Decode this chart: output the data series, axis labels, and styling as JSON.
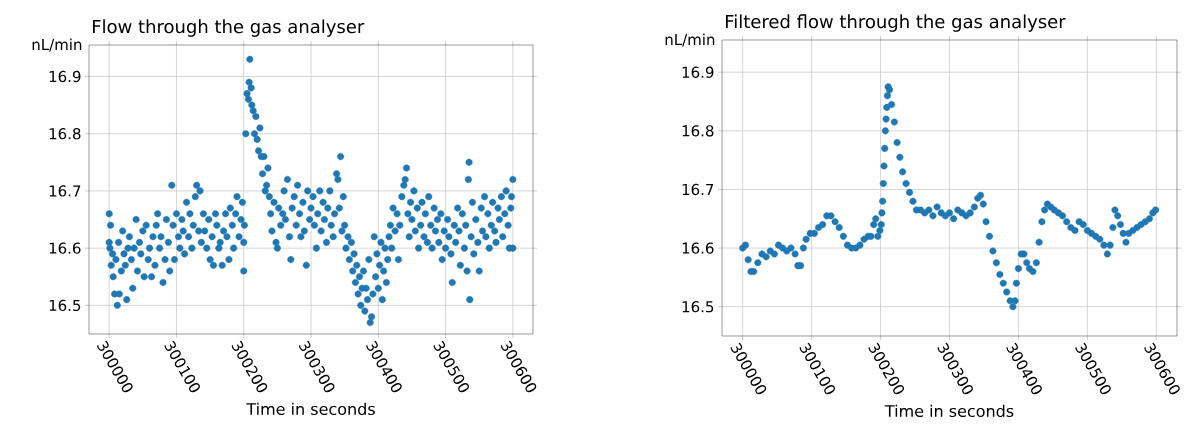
{
  "chart_data": [
    {
      "type": "scatter",
      "title": "Flow through the gas analyser",
      "xlabel": "Time in seconds",
      "ylabel": "nL/min",
      "xlim": [
        299970,
        300630
      ],
      "ylim": [
        16.45,
        16.955
      ],
      "xticks": [
        300000,
        300100,
        300200,
        300300,
        300400,
        300500,
        300600
      ],
      "yticks": [
        16.5,
        16.6,
        16.7,
        16.8,
        16.9
      ],
      "grid": true,
      "marker": "circle",
      "series": [
        {
          "color": "#1f77b4",
          "x": [
            300000,
            300000,
            300001,
            300002,
            300003,
            300005,
            300006,
            300008,
            300010,
            300012,
            300014,
            300015,
            300018,
            300020,
            300022,
            300024,
            300026,
            300028,
            300030,
            300033,
            300035,
            300037,
            300040,
            300042,
            300045,
            300047,
            300050,
            300052,
            300055,
            300058,
            300060,
            300063,
            300065,
            300068,
            300070,
            300072,
            300075,
            300077,
            300080,
            300083,
            300085,
            300088,
            300090,
            300093,
            300095,
            300097,
            300100,
            300103,
            300105,
            300108,
            300110,
            300112,
            300115,
            300118,
            300120,
            300123,
            300125,
            300128,
            300130,
            300133,
            300135,
            300137,
            300140,
            300142,
            300145,
            300148,
            300150,
            300153,
            300155,
            300158,
            300160,
            300163,
            300165,
            300168,
            300170,
            300173,
            300175,
            300178,
            300180,
            300183,
            300185,
            300188,
            300190,
            300193,
            300196,
            300198,
            300200,
            300200,
            300201,
            300203,
            300205,
            300207,
            300208,
            300209,
            300211,
            300212,
            300214,
            300216,
            300218,
            300220,
            300222,
            300224,
            300226,
            300228,
            300230,
            300232,
            300234,
            300236,
            300238,
            300240,
            300242,
            300245,
            300248,
            300250,
            300252,
            300255,
            300258,
            300260,
            300262,
            300265,
            300268,
            300270,
            300272,
            300275,
            300278,
            300280,
            300283,
            300285,
            300288,
            300290,
            300293,
            300295,
            300298,
            300300,
            300303,
            300305,
            300308,
            300310,
            300313,
            300315,
            300318,
            300320,
            300323,
            300325,
            300328,
            300330,
            300333,
            300335,
            300338,
            300340,
            300342,
            300344,
            300346,
            300348,
            300350,
            300352,
            300355,
            300357,
            300360,
            300362,
            300364,
            300366,
            300368,
            300370,
            300372,
            300374,
            300376,
            300378,
            300380,
            300382,
            300384,
            300386,
            300388,
            300390,
            300392,
            300394,
            300396,
            300398,
            300400,
            300402,
            300404,
            300406,
            300408,
            300410,
            300412,
            300414,
            300416,
            300418,
            300420,
            300422,
            300425,
            300428,
            300430,
            300432,
            300435,
            300438,
            300440,
            300442,
            300444,
            300446,
            300448,
            300450,
            300453,
            300455,
            300458,
            300460,
            300463,
            300465,
            300468,
            300470,
            300473,
            300475,
            300478,
            300480,
            300483,
            300485,
            300488,
            300490,
            300493,
            300495,
            300498,
            300500,
            300503,
            300505,
            300508,
            300510,
            300513,
            300515,
            300518,
            300520,
            300522,
            300525,
            300528,
            300530,
            300532,
            300534,
            300535,
            300536,
            300538,
            300540,
            300542,
            300545,
            300548,
            300550,
            300553,
            300555,
            300558,
            300560,
            300563,
            300565,
            300568,
            300570,
            300573,
            300575,
            300578,
            300580,
            300583,
            300585,
            300588,
            300590,
            300593,
            300595,
            300597,
            300598,
            300600,
            300600
          ],
          "values": [
            16.66,
            16.61,
            16.6,
            16.64,
            16.57,
            16.59,
            16.55,
            16.52,
            16.58,
            16.5,
            16.61,
            16.52,
            16.56,
            16.63,
            16.59,
            16.57,
            16.51,
            16.6,
            16.62,
            16.58,
            16.53,
            16.6,
            16.65,
            16.56,
            16.61,
            16.59,
            16.63,
            16.55,
            16.64,
            16.58,
            16.6,
            16.55,
            16.62,
            16.57,
            16.64,
            16.66,
            16.6,
            16.62,
            16.54,
            16.58,
            16.65,
            16.61,
            16.56,
            16.71,
            16.64,
            16.58,
            16.66,
            16.62,
            16.6,
            16.65,
            16.63,
            16.59,
            16.68,
            16.62,
            16.66,
            16.6,
            16.64,
            16.69,
            16.71,
            16.63,
            16.7,
            16.61,
            16.66,
            16.63,
            16.6,
            16.65,
            16.58,
            16.62,
            16.57,
            16.66,
            16.64,
            16.6,
            16.61,
            16.57,
            16.63,
            16.66,
            16.62,
            16.58,
            16.67,
            16.64,
            16.6,
            16.66,
            16.69,
            16.62,
            16.65,
            16.68,
            16.56,
            16.61,
            16.64,
            16.8,
            16.87,
            16.86,
            16.89,
            16.93,
            16.88,
            16.85,
            16.84,
            16.8,
            16.83,
            16.79,
            16.77,
            16.81,
            16.76,
            16.73,
            16.76,
            16.7,
            16.71,
            16.74,
            16.69,
            16.66,
            16.63,
            16.68,
            16.61,
            16.6,
            16.67,
            16.64,
            16.66,
            16.7,
            16.65,
            16.72,
            16.62,
            16.58,
            16.67,
            16.69,
            16.64,
            16.71,
            16.66,
            16.62,
            16.68,
            16.63,
            16.57,
            16.7,
            16.65,
            16.67,
            16.69,
            16.64,
            16.6,
            16.66,
            16.7,
            16.63,
            16.68,
            16.65,
            16.61,
            16.67,
            16.7,
            16.64,
            16.62,
            16.66,
            16.73,
            16.72,
            16.67,
            16.76,
            16.63,
            16.69,
            16.64,
            16.6,
            16.62,
            16.58,
            16.61,
            16.56,
            16.59,
            16.54,
            16.57,
            16.52,
            16.55,
            16.5,
            16.53,
            16.56,
            16.49,
            16.53,
            16.51,
            16.58,
            16.47,
            16.48,
            16.52,
            16.62,
            16.55,
            16.59,
            16.53,
            16.57,
            16.61,
            16.51,
            16.56,
            16.6,
            16.54,
            16.58,
            16.62,
            16.64,
            16.6,
            16.67,
            16.63,
            16.66,
            16.58,
            16.64,
            16.69,
            16.71,
            16.72,
            16.74,
            16.66,
            16.62,
            16.68,
            16.65,
            16.7,
            16.63,
            16.67,
            16.6,
            16.64,
            16.68,
            16.62,
            16.66,
            16.61,
            16.69,
            16.64,
            16.6,
            16.67,
            16.63,
            16.65,
            16.61,
            16.66,
            16.58,
            16.63,
            16.6,
            16.65,
            16.62,
            16.59,
            16.54,
            16.64,
            16.61,
            16.67,
            16.63,
            16.57,
            16.66,
            16.6,
            16.64,
            16.56,
            16.72,
            16.75,
            16.51,
            16.62,
            16.68,
            16.59,
            16.65,
            16.61,
            16.56,
            16.67,
            16.63,
            16.69,
            16.62,
            16.66,
            16.6,
            16.64,
            16.68,
            16.63,
            16.61,
            16.67,
            16.65,
            16.69,
            16.62,
            16.66,
            16.7,
            16.64,
            16.6,
            16.67,
            16.69,
            16.72,
            16.6
          ]
        }
      ]
    },
    {
      "type": "scatter",
      "title": "Filtered flow through the gas analyser",
      "xlabel": "Time in seconds",
      "ylabel": "nL/min",
      "xlim": [
        299970,
        300630
      ],
      "ylim": [
        16.45,
        16.955
      ],
      "xticks": [
        300000,
        300100,
        300200,
        300300,
        300400,
        300500,
        300600
      ],
      "yticks": [
        16.5,
        16.6,
        16.7,
        16.8,
        16.9
      ],
      "grid": true,
      "marker": "circle",
      "series": [
        {
          "color": "#1f77b4",
          "x": [
            300000,
            300004,
            300008,
            300012,
            300016,
            300022,
            300028,
            300034,
            300040,
            300046,
            300052,
            300058,
            300064,
            300070,
            300076,
            300080,
            300084,
            300088,
            300092,
            300098,
            300104,
            300110,
            300116,
            300122,
            300128,
            300134,
            300140,
            300146,
            300152,
            300158,
            300164,
            300170,
            300176,
            300182,
            300186,
            300190,
            300193,
            300196,
            300199,
            300201,
            300202,
            300203,
            300204,
            300205,
            300206,
            300207,
            300208,
            300209,
            300210,
            300211,
            300213,
            300216,
            300220,
            300224,
            300228,
            300232,
            300237,
            300242,
            300247,
            300252,
            300258,
            300264,
            300270,
            300276,
            300282,
            300288,
            300294,
            300300,
            300306,
            300312,
            300318,
            300324,
            300330,
            300336,
            300341,
            300345,
            300349,
            300353,
            300358,
            300363,
            300368,
            300373,
            300378,
            300383,
            300388,
            300392,
            300395,
            300397,
            300400,
            300404,
            300408,
            300412,
            300416,
            300421,
            300426,
            300430,
            300434,
            300438,
            300442,
            300447,
            300452,
            300458,
            300464,
            300470,
            300476,
            300482,
            300488,
            300494,
            300500,
            300506,
            300512,
            300518,
            300524,
            300529,
            300533,
            300537,
            300540,
            300544,
            300548,
            300552,
            300556,
            300560,
            300566,
            300572,
            300578,
            300584,
            300590,
            300595,
            300599
          ],
          "values": [
            16.6,
            16.605,
            16.58,
            16.56,
            16.56,
            16.575,
            16.59,
            16.585,
            16.595,
            16.59,
            16.605,
            16.6,
            16.595,
            16.6,
            16.59,
            16.57,
            16.57,
            16.6,
            16.615,
            16.625,
            16.625,
            16.635,
            16.64,
            16.655,
            16.655,
            16.645,
            16.635,
            16.62,
            16.605,
            16.6,
            16.6,
            16.605,
            16.615,
            16.62,
            16.62,
            16.64,
            16.65,
            16.62,
            16.63,
            16.64,
            16.66,
            16.68,
            16.71,
            16.74,
            16.77,
            16.8,
            16.82,
            16.84,
            16.86,
            16.875,
            16.87,
            16.845,
            16.815,
            16.78,
            16.755,
            16.73,
            16.71,
            16.695,
            16.68,
            16.665,
            16.665,
            16.66,
            16.665,
            16.655,
            16.67,
            16.66,
            16.655,
            16.66,
            16.65,
            16.665,
            16.66,
            16.655,
            16.66,
            16.67,
            16.685,
            16.69,
            16.675,
            16.645,
            16.62,
            16.595,
            16.575,
            16.555,
            16.54,
            16.525,
            16.51,
            16.5,
            16.51,
            16.54,
            16.565,
            16.59,
            16.59,
            16.575,
            16.565,
            16.56,
            16.575,
            16.61,
            16.645,
            16.665,
            16.675,
            16.67,
            16.665,
            16.66,
            16.655,
            16.645,
            16.635,
            16.63,
            16.645,
            16.64,
            16.63,
            16.625,
            16.62,
            16.615,
            16.605,
            16.59,
            16.605,
            16.635,
            16.665,
            16.655,
            16.64,
            16.625,
            16.61,
            16.625,
            16.63,
            16.635,
            16.64,
            16.645,
            16.65,
            16.66,
            16.665
          ]
        }
      ]
    }
  ]
}
